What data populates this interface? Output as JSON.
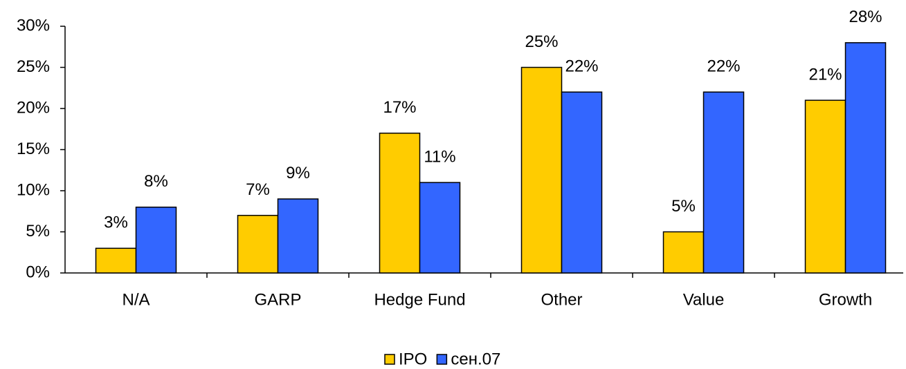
{
  "chart_data": {
    "type": "bar",
    "categories": [
      "N/A",
      "GARP",
      "Hedge Fund",
      "Other",
      "Value",
      "Growth"
    ],
    "series": [
      {
        "name": "IPO",
        "color": "#ffcc00",
        "values": [
          3,
          7,
          17,
          25,
          5,
          21
        ],
        "value_labels": [
          "3%",
          "7%",
          "17%",
          "25%",
          "5%",
          "21%"
        ]
      },
      {
        "name": "сен.07",
        "color": "#3366ff",
        "values": [
          8,
          9,
          11,
          22,
          22,
          28
        ],
        "value_labels": [
          "8%",
          "9%",
          "11%",
          "22%",
          "22%",
          "28%"
        ]
      }
    ],
    "ylim": [
      0,
      30
    ],
    "yticks": [
      {
        "value": 0,
        "label": "0%"
      },
      {
        "value": 5,
        "label": "5%"
      },
      {
        "value": 10,
        "label": "10%"
      },
      {
        "value": 15,
        "label": "15%"
      },
      {
        "value": 20,
        "label": "20%"
      },
      {
        "value": 25,
        "label": "25%"
      },
      {
        "value": 30,
        "label": "30%"
      }
    ],
    "legend": "bottom"
  }
}
